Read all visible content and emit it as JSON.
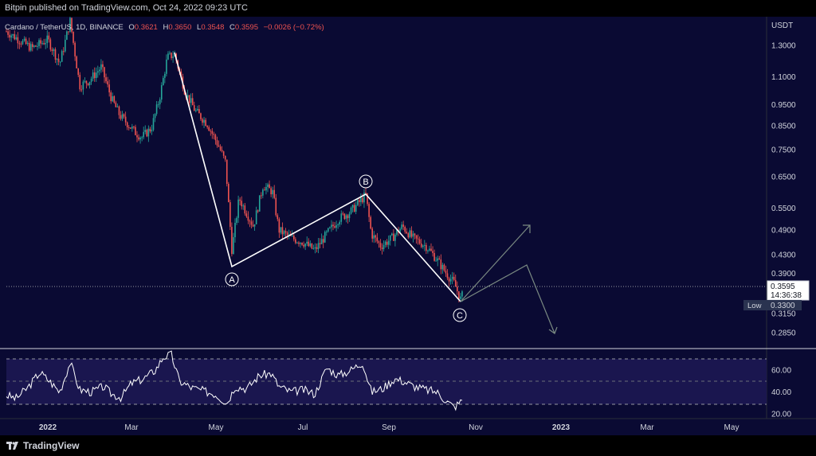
{
  "header": {
    "publisher_line": "Bitpin published on TradingView.com, Oct 24, 2022 09:23 UTC"
  },
  "footer": {
    "brand": "TradingView"
  },
  "chart_data": {
    "type": "candlestick",
    "symbol_line": {
      "name": "Cardano / TetherUS, 1D, BINANCE",
      "o_label": "O",
      "o_value": "0.3621",
      "h_label": "H",
      "h_value": "0.3650",
      "l_label": "L",
      "l_value": "0.3548",
      "c_label": "C",
      "c_value": "0.3595",
      "change": "−0.0026 (−0.72%)"
    },
    "currency": "USDT",
    "y_axis_scale": "log",
    "y_ticks": [
      "1.3000",
      "1.1000",
      "0.9500",
      "0.8500",
      "0.7500",
      "0.6500",
      "0.5500",
      "0.4900",
      "0.4300",
      "0.3900",
      "0.3150",
      "0.2850"
    ],
    "x_ticks": [
      "2022",
      "Mar",
      "May",
      "Jul",
      "Sep",
      "Nov",
      "2023",
      "Mar",
      "May"
    ],
    "last_price": {
      "value": "0.3595",
      "countdown": "14:36:38"
    },
    "low_marker": {
      "label": "Low",
      "value": "0.3300"
    },
    "wave_labels": [
      "A",
      "B",
      "C"
    ],
    "rsi": {
      "ticks": [
        "60.00",
        "40.00",
        "20.00"
      ],
      "upper_band": 70,
      "middle": 50,
      "lower_band": 30
    },
    "colors": {
      "up": "#26a69a",
      "down": "#ef5350",
      "background": "#0a0a33",
      "rsi_band": "#1a164f"
    }
  }
}
